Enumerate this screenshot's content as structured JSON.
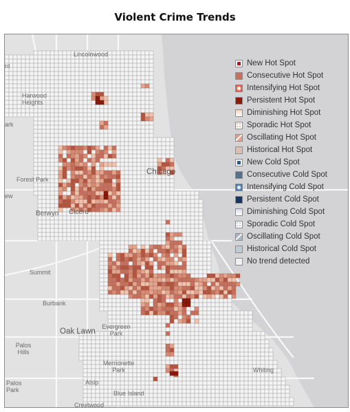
{
  "title": "Violent Crime Trends",
  "places": [
    {
      "name": "Lincolnwood",
      "size": "small"
    },
    {
      "name": "Harwood Heights",
      "size": "small"
    },
    {
      "name": "Forest Park",
      "size": "small"
    },
    {
      "name": "Berwyn",
      "size": "mid"
    },
    {
      "name": "Cicero",
      "size": "mid"
    },
    {
      "name": "Chicago",
      "size": "big"
    },
    {
      "name": "Summit",
      "size": "small"
    },
    {
      "name": "Burbank",
      "size": "small"
    },
    {
      "name": "Oak Lawn",
      "size": "big"
    },
    {
      "name": "Evergreen Park",
      "size": "small"
    },
    {
      "name": "Palos Hills",
      "size": "small"
    },
    {
      "name": "Merrionette Park",
      "size": "small"
    },
    {
      "name": "Palos Park",
      "size": "small"
    },
    {
      "name": "Alsip",
      "size": "small"
    },
    {
      "name": "Blue Island",
      "size": "small"
    },
    {
      "name": "Whiting",
      "size": "small"
    },
    {
      "name": "Crestwood",
      "size": "small"
    },
    {
      "name": "nt",
      "size": "small"
    },
    {
      "name": "ark",
      "size": "small"
    },
    {
      "name": "ew",
      "size": "small"
    }
  ],
  "legend": [
    {
      "label": "New Hot Spot",
      "color": "#b8131c",
      "pattern": "center"
    },
    {
      "label": "Consecutive Hot Spot",
      "color": "#c8705d",
      "pattern": "solid"
    },
    {
      "label": "Intensifying Hot Spot",
      "color": "#e05a3c",
      "pattern": "glow"
    },
    {
      "label": "Persistent Hot Spot",
      "color": "#8b1a0c",
      "pattern": "solid"
    },
    {
      "label": "Diminishing Hot Spot",
      "color": "#f6d3be",
      "pattern": "fade"
    },
    {
      "label": "Sporadic Hot Spot",
      "color": "#e6927a",
      "pattern": "dots"
    },
    {
      "label": "Oscillating Hot Spot",
      "color": "#e8a08a",
      "pattern": "osc"
    },
    {
      "label": "Historical Hot Spot",
      "color": "#dcc1b2",
      "pattern": "solid"
    },
    {
      "label": "New Cold Spot",
      "color": "#1d5a96",
      "pattern": "center"
    },
    {
      "label": "Consecutive Cold Spot",
      "color": "#56708e",
      "pattern": "solid"
    },
    {
      "label": "Intensifying Cold Spot",
      "color": "#3d78b8",
      "pattern": "glow"
    },
    {
      "label": "Persistent Cold Spot",
      "color": "#163560",
      "pattern": "solid"
    },
    {
      "label": "Diminishing Cold Spot",
      "color": "#d6dceb",
      "pattern": "fade"
    },
    {
      "label": "Sporadic Cold Spot",
      "color": "#9fb3d1",
      "pattern": "dots"
    },
    {
      "label": "Oscillating Cold Spot",
      "color": "#a6b5c8",
      "pattern": "osc"
    },
    {
      "label": "Historical Cold Spot",
      "color": "#bccbd6",
      "pattern": "solid"
    },
    {
      "label": "No trend detected",
      "color": "#f1f1f1",
      "pattern": "solid"
    }
  ],
  "colors": {
    "lake": "#d3d3d5",
    "land": "#e2e2e2",
    "grid_fill": "#f4f4f4",
    "grid_line": "#adadad",
    "road": "#f7f7f7"
  }
}
